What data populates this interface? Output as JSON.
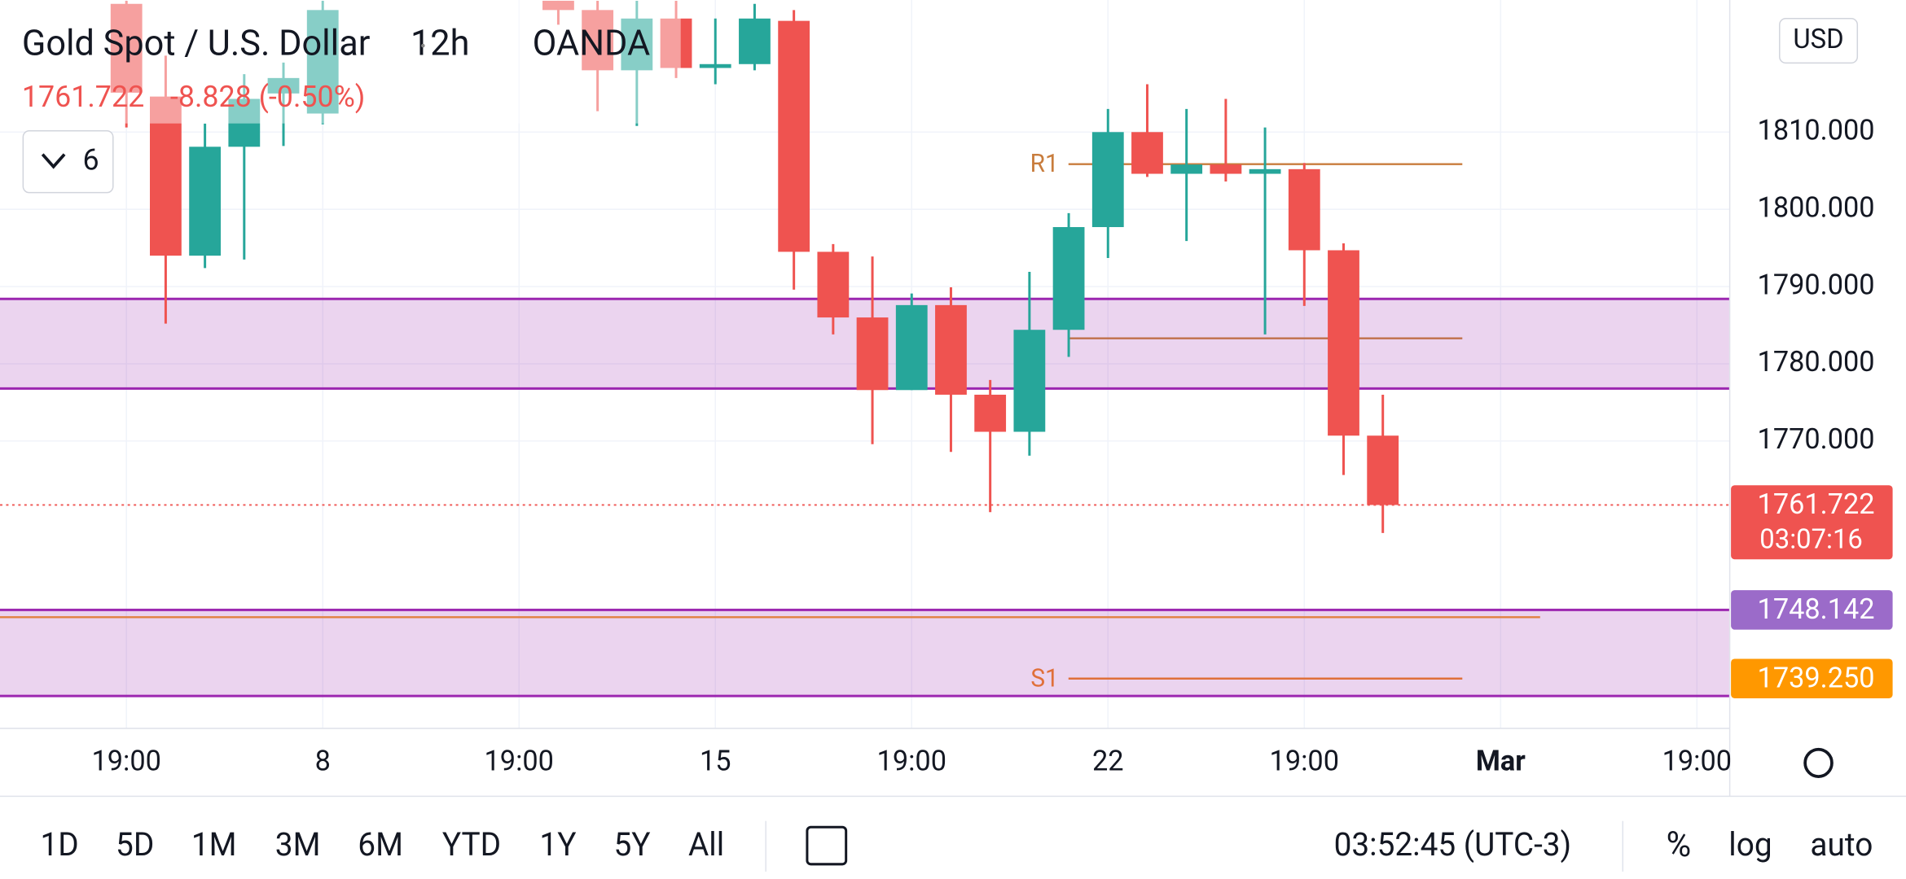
{
  "header": {
    "title": "Gold Spot / U.S. Dollar",
    "interval": "12h",
    "source": "OANDA",
    "last": "1761.722",
    "change": "-8.828 (-0.50%)",
    "indicators": "6",
    "currency": "USD"
  },
  "chart_data": {
    "type": "candlestick",
    "categories": [
      "19:00",
      null,
      null,
      null,
      null,
      "8",
      null,
      null,
      null,
      null,
      "19:00",
      null,
      null,
      null,
      null,
      "15",
      null,
      null,
      null,
      null,
      "19:00",
      null,
      null,
      null,
      null,
      "22",
      null,
      null,
      null,
      null,
      "19:00",
      null,
      null,
      null,
      null,
      "Mar",
      null,
      null,
      null,
      null,
      "19:00"
    ],
    "open": [
      1826.6,
      1814.6,
      1794.0,
      1808.1,
      1815.0,
      1812.4,
      null,
      null,
      null,
      null,
      null,
      1827.0,
      1825.8,
      1818.0,
      1824.7,
      1818.3,
      1818.8,
      1824.4,
      1794.5,
      1786.0,
      1776.6,
      1787.6,
      1776.0,
      1771.2,
      1784.4,
      1797.7,
      1810.0,
      1804.6,
      1805.8,
      1804.6,
      1805.2,
      1794.7,
      1770.7,
      null,
      null,
      null,
      null,
      null,
      null,
      null,
      null
    ],
    "high": [
      1827.0,
      1819.9,
      1811.1,
      1817.5,
      1819.0,
      1827.0,
      null,
      null,
      null,
      null,
      null,
      1827.0,
      1827.0,
      1827.0,
      1827.0,
      1824.7,
      1826.6,
      1825.8,
      1795.5,
      1793.9,
      1789.1,
      1789.9,
      1777.9,
      1791.9,
      1799.5,
      1813.0,
      1816.2,
      1813.0,
      1814.3,
      1810.6,
      1806.0,
      1795.6,
      1776.0,
      null,
      null,
      null,
      null,
      null,
      null,
      null,
      null
    ],
    "low": [
      1810.6,
      1785.2,
      1792.4,
      1793.5,
      1808.2,
      1811.0,
      null,
      null,
      null,
      null,
      null,
      1823.9,
      1812.7,
      1810.8,
      1817.0,
      1816.2,
      1818.0,
      1789.6,
      1783.8,
      1769.6,
      1776.6,
      1768.6,
      1760.8,
      1768.1,
      1780.9,
      1793.7,
      1804.2,
      1795.9,
      1803.6,
      1783.8,
      1787.5,
      1765.6,
      1758.1,
      null,
      null,
      null,
      null,
      null,
      null,
      null,
      null
    ],
    "close": [
      1815.1,
      1794.0,
      1808.1,
      1814.3,
      1817.0,
      1825.8,
      null,
      null,
      null,
      null,
      null,
      1825.8,
      1818.0,
      1824.7,
      1818.3,
      1818.8,
      1824.7,
      1794.5,
      1786.0,
      1776.6,
      1787.6,
      1776.0,
      1771.2,
      1784.4,
      1797.7,
      1810.0,
      1804.6,
      1805.8,
      1804.6,
      1805.2,
      1794.7,
      1770.7,
      1761.722,
      null,
      null,
      null,
      null,
      null,
      null,
      null,
      null
    ],
    "up_color": "#26a69a",
    "down_color": "#ef5350",
    "ylim": [
      1732.8,
      1827.1
    ],
    "yticks": [
      {
        "value": 1770,
        "label": "1770.000"
      },
      {
        "value": 1780,
        "label": "1780.000"
      },
      {
        "value": 1790,
        "label": "1790.000"
      },
      {
        "value": 1800,
        "label": "1800.000"
      },
      {
        "value": 1810,
        "label": "1810.000"
      }
    ],
    "grid": true,
    "zones": [
      {
        "from": 1776.8,
        "to": 1788.4,
        "color": "#9c27b0"
      },
      {
        "from": 1737.0,
        "to": 1748.142,
        "color": "#9c27b0"
      }
    ],
    "levels": [
      {
        "name": "R1",
        "value": 1805.85,
        "color": "#c87c3c"
      },
      {
        "value": 1783.3,
        "color": "#c0704a"
      },
      {
        "name": "S1",
        "value": 1739.25,
        "color": "#e0703a"
      },
      {
        "value": 1747.2,
        "color": "#e08040"
      }
    ],
    "price_labels": [
      {
        "value": 1761.722,
        "label": "1761.722",
        "countdown": "03:07:16",
        "color": "#ef5350"
      },
      {
        "value": 1748.142,
        "label": "1748.142",
        "color": "#9b6bc9"
      },
      {
        "value": 1739.25,
        "label": "1739.250",
        "color": "#ff9800"
      }
    ]
  },
  "toolbar": {
    "ranges": [
      "1D",
      "5D",
      "1M",
      "3M",
      "6M",
      "YTD",
      "1Y",
      "5Y",
      "All"
    ],
    "clock": "03:52:45 (UTC-3)",
    "percent": "%",
    "log": "log",
    "auto": "auto"
  }
}
